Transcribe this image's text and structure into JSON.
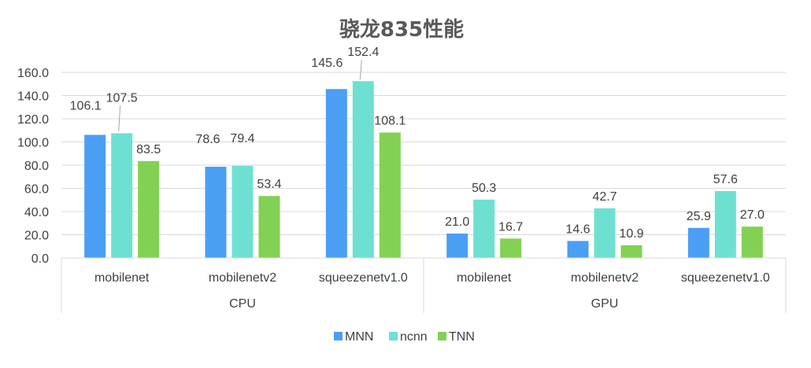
{
  "chart_data": {
    "type": "bar",
    "title": "骁龙835性能",
    "groups": [
      "CPU",
      "GPU"
    ],
    "categories": [
      "mobilenet",
      "mobilenetv2",
      "squeezenetv1.0",
      "mobilenet",
      "mobilenetv2",
      "squeezenetv1.0"
    ],
    "series": [
      {
        "name": "MNN",
        "color": "#4a9ff5",
        "values": [
          106.1,
          78.6,
          145.6,
          21.0,
          14.6,
          25.9
        ]
      },
      {
        "name": "ncnn",
        "color": "#6ee0d2",
        "values": [
          107.5,
          79.4,
          152.4,
          50.3,
          42.7,
          57.6
        ]
      },
      {
        "name": "TNN",
        "color": "#82d154",
        "values": [
          83.5,
          53.4,
          108.1,
          16.7,
          10.9,
          27.0
        ]
      }
    ],
    "ylim": [
      0,
      160
    ],
    "yticks": [
      "0.0",
      "20.0",
      "40.0",
      "60.0",
      "80.0",
      "100.0",
      "120.0",
      "140.0",
      "160.0"
    ],
    "value_labels": [
      [
        "106.1",
        "78.6",
        "145.6",
        "21.0",
        "14.6",
        "25.9"
      ],
      [
        "107.5",
        "79.4",
        "152.4",
        "50.3",
        "42.7",
        "57.6"
      ],
      [
        "83.5",
        "53.4",
        "108.1",
        "16.7",
        "10.9",
        "27.0"
      ]
    ],
    "grid": true,
    "legend": "bottom"
  }
}
